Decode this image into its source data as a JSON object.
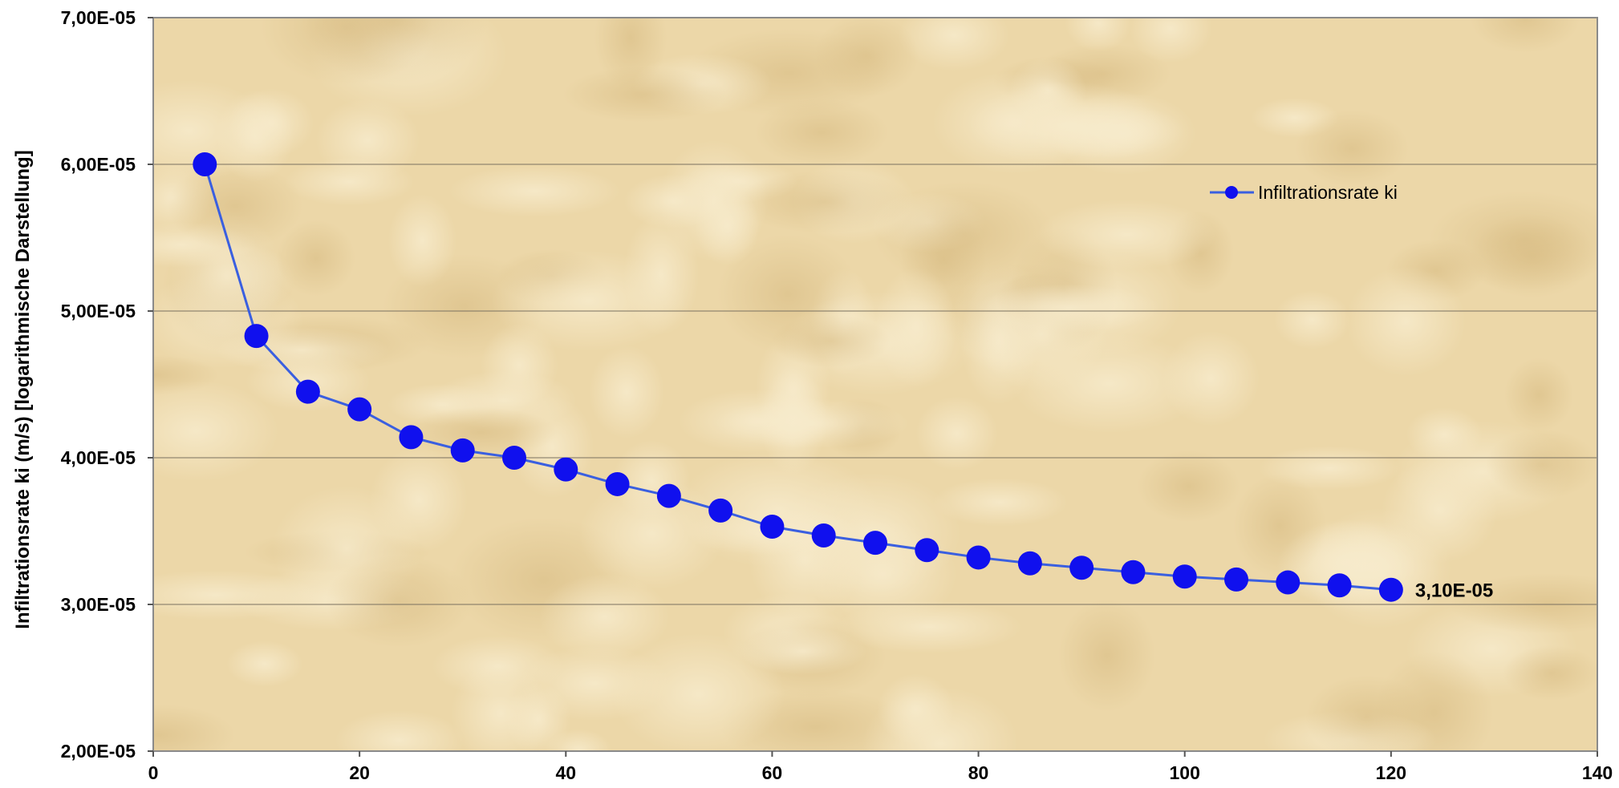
{
  "colors": {
    "series": "#1010ee",
    "line": "#3a5fe0",
    "plot_background": "#ecd7a8",
    "plot_texture_light": "#f4e6c2",
    "plot_texture_dark": "#dcc08a",
    "gridline": "#7a7160",
    "plot_border": "#8a8a8a"
  },
  "chart_data": {
    "type": "line",
    "title": "",
    "xlabel": "",
    "ylabel": "Infiltrationsrate ki (m/s) [logarithmische Darstellung]",
    "xlim": [
      0,
      140
    ],
    "ylim": [
      2e-05,
      7e-05
    ],
    "x_ticks": [
      "0",
      "20",
      "40",
      "60",
      "80",
      "100",
      "120",
      "140"
    ],
    "y_ticks": [
      "2,00E-05",
      "3,00E-05",
      "4,00E-05",
      "5,00E-05",
      "6,00E-05",
      "7,00E-05"
    ],
    "grid": {
      "horizontal": true,
      "vertical": false
    },
    "legend_position": "top-right",
    "series": [
      {
        "name": "Infiltrationsrate ki",
        "marker": "circle",
        "x": [
          5,
          10,
          15,
          20,
          25,
          30,
          35,
          40,
          45,
          50,
          55,
          60,
          65,
          70,
          75,
          80,
          85,
          90,
          95,
          100,
          105,
          110,
          115,
          120
        ],
        "y": [
          6e-05,
          4.83e-05,
          4.45e-05,
          4.33e-05,
          4.14e-05,
          4.05e-05,
          4e-05,
          3.92e-05,
          3.82e-05,
          3.74e-05,
          3.64e-05,
          3.53e-05,
          3.47e-05,
          3.42e-05,
          3.37e-05,
          3.32e-05,
          3.28e-05,
          3.25e-05,
          3.22e-05,
          3.19e-05,
          3.17e-05,
          3.15e-05,
          3.13e-05,
          3.1e-05
        ]
      }
    ],
    "annotations": [
      {
        "text": "3,10E-05",
        "x": 120,
        "y": 3.1e-05
      }
    ]
  }
}
